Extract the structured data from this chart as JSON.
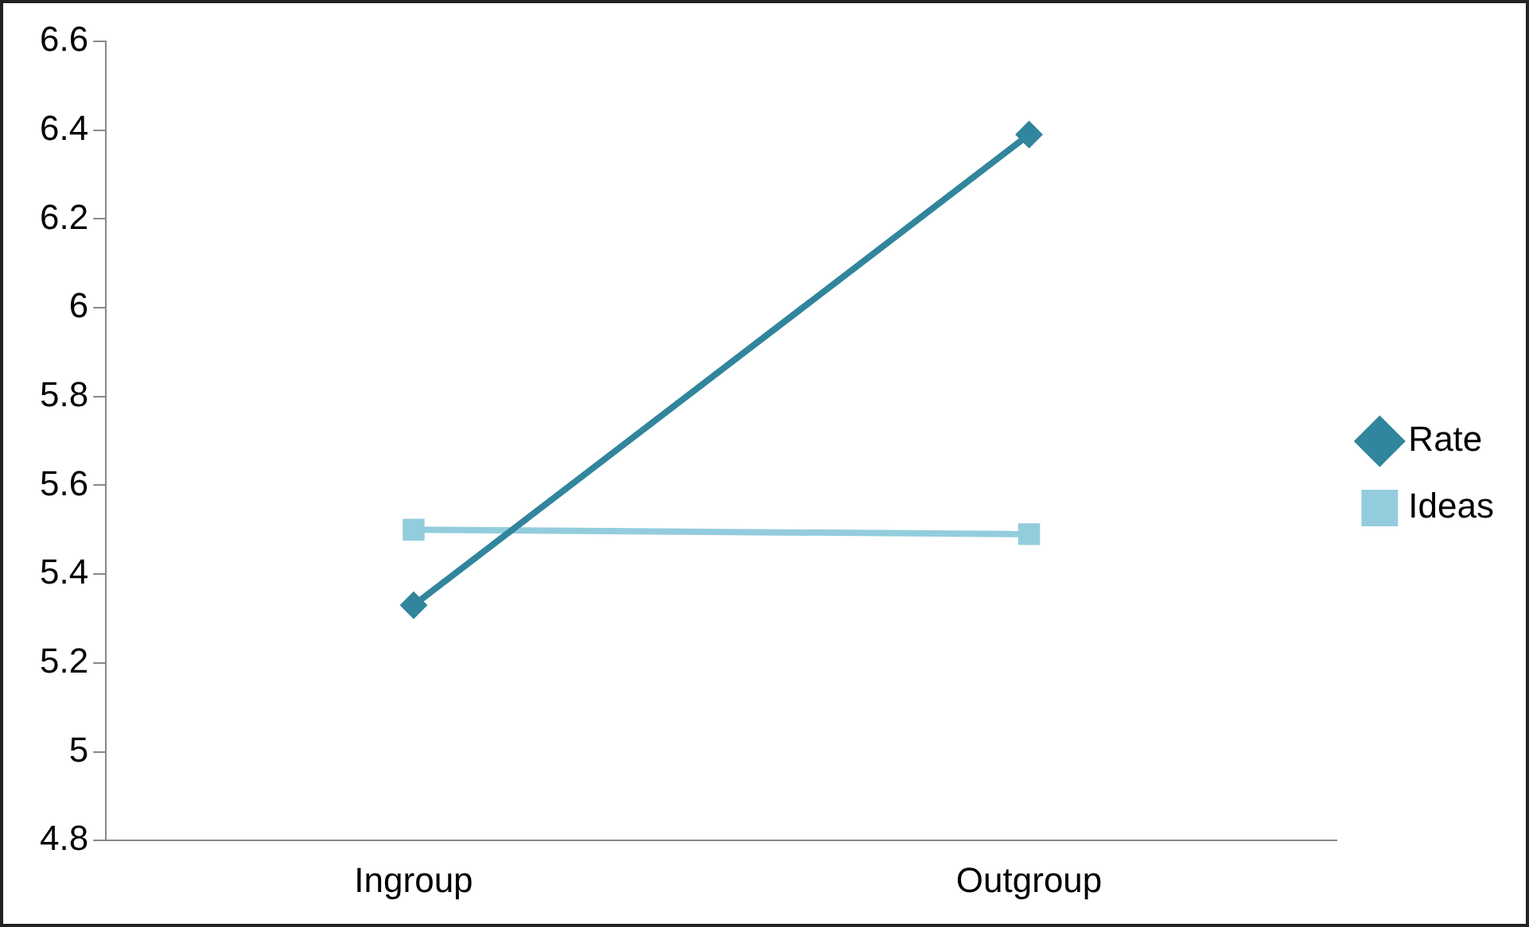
{
  "chart_data": {
    "type": "line",
    "categories": [
      "Ingroup",
      "Outgroup"
    ],
    "series": [
      {
        "name": "Rate",
        "color": "#31859c",
        "values": [
          5.33,
          6.39
        ],
        "marker": "diamond"
      },
      {
        "name": "Ideas",
        "color": "#93cddd",
        "values": [
          5.5,
          5.49
        ],
        "marker": "square"
      }
    ],
    "ylim": [
      4.8,
      6.6
    ],
    "yticks": [
      4.8,
      5,
      5.2,
      5.4,
      5.6,
      5.8,
      6,
      6.2,
      6.4,
      6.6
    ],
    "grid": false,
    "legend": "right",
    "line_style": "solid"
  }
}
